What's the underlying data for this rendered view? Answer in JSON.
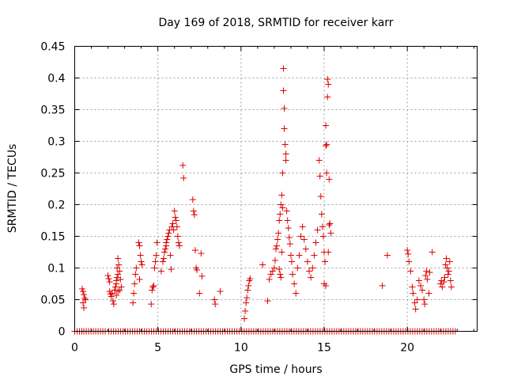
{
  "chart_data": {
    "type": "scatter",
    "title": "Day 169 of 2018, SRMTID for receiver karr",
    "xlabel": "GPS time / hours",
    "ylabel": "SRMTID / TECUs",
    "xlim": [
      0,
      24.2
    ],
    "ylim": [
      0,
      0.45
    ],
    "xticks": [
      0,
      5,
      10,
      15,
      20
    ],
    "xtick_labels": [
      "0",
      "5",
      "10",
      "15",
      "20"
    ],
    "yticks": [
      0,
      0.05,
      0.1,
      0.15,
      0.2,
      0.25,
      0.3,
      0.35,
      0.4,
      0.45
    ],
    "ytick_labels": [
      "0",
      "0.05",
      "0.1",
      "0.15",
      "0.2",
      "0.25",
      "0.3",
      "0.35",
      "0.4",
      "0.45"
    ],
    "grid": true,
    "marker": "+",
    "color": "#dd0000",
    "zero_band": {
      "value": 0,
      "segments": [
        [
          0,
          0.45
        ],
        [
          0.55,
          1.95
        ],
        [
          2.05,
          9.95
        ],
        [
          10.05,
          22.9
        ]
      ]
    },
    "series": [
      {
        "name": "SRMTID",
        "points": [
          [
            0.45,
            0.067
          ],
          [
            0.5,
            0.063
          ],
          [
            0.55,
            0.058
          ],
          [
            0.6,
            0.052
          ],
          [
            0.55,
            0.037
          ],
          [
            0.65,
            0.05
          ],
          [
            0.5,
            0.045
          ],
          [
            2.0,
            0.088
          ],
          [
            2.05,
            0.083
          ],
          [
            2.1,
            0.078
          ],
          [
            2.1,
            0.063
          ],
          [
            2.15,
            0.059
          ],
          [
            2.2,
            0.055
          ],
          [
            2.25,
            0.06
          ],
          [
            2.3,
            0.048
          ],
          [
            2.35,
            0.043
          ],
          [
            2.4,
            0.065
          ],
          [
            2.45,
            0.07
          ],
          [
            2.5,
            0.075
          ],
          [
            2.5,
            0.08
          ],
          [
            2.55,
            0.085
          ],
          [
            2.6,
            0.09
          ],
          [
            2.55,
            0.1
          ],
          [
            2.6,
            0.115
          ],
          [
            2.65,
            0.105
          ],
          [
            2.7,
            0.095
          ],
          [
            2.75,
            0.082
          ],
          [
            2.8,
            0.07
          ],
          [
            2.5,
            0.057
          ],
          [
            2.6,
            0.063
          ],
          [
            2.7,
            0.065
          ],
          [
            3.5,
            0.045
          ],
          [
            3.55,
            0.06
          ],
          [
            3.6,
            0.075
          ],
          [
            3.65,
            0.09
          ],
          [
            3.7,
            0.1
          ],
          [
            3.85,
            0.14
          ],
          [
            3.9,
            0.135
          ],
          [
            3.95,
            0.12
          ],
          [
            4.0,
            0.11
          ],
          [
            4.05,
            0.105
          ],
          [
            3.9,
            0.082
          ],
          [
            4.6,
            0.043
          ],
          [
            4.65,
            0.065
          ],
          [
            4.7,
            0.07
          ],
          [
            4.75,
            0.072
          ],
          [
            4.8,
            0.1
          ],
          [
            4.85,
            0.11
          ],
          [
            4.9,
            0.12
          ],
          [
            4.95,
            0.14
          ],
          [
            5.2,
            0.095
          ],
          [
            5.3,
            0.11
          ],
          [
            5.35,
            0.115
          ],
          [
            5.4,
            0.125
          ],
          [
            5.45,
            0.13
          ],
          [
            5.5,
            0.135
          ],
          [
            5.5,
            0.14
          ],
          [
            5.55,
            0.145
          ],
          [
            5.6,
            0.15
          ],
          [
            5.65,
            0.155
          ],
          [
            5.7,
            0.16
          ],
          [
            5.75,
            0.12
          ],
          [
            5.8,
            0.098
          ],
          [
            5.85,
            0.165
          ],
          [
            5.9,
            0.17
          ],
          [
            5.95,
            0.16
          ],
          [
            6.0,
            0.19
          ],
          [
            6.05,
            0.18
          ],
          [
            6.1,
            0.175
          ],
          [
            6.15,
            0.165
          ],
          [
            6.2,
            0.15
          ],
          [
            6.25,
            0.14
          ],
          [
            6.3,
            0.135
          ],
          [
            6.5,
            0.262
          ],
          [
            6.55,
            0.242
          ],
          [
            7.1,
            0.208
          ],
          [
            7.15,
            0.19
          ],
          [
            7.2,
            0.184
          ],
          [
            7.25,
            0.128
          ],
          [
            7.3,
            0.1
          ],
          [
            7.35,
            0.097
          ],
          [
            7.5,
            0.06
          ],
          [
            7.6,
            0.123
          ],
          [
            7.65,
            0.087
          ],
          [
            8.4,
            0.05
          ],
          [
            8.45,
            0.043
          ],
          [
            8.75,
            0.063
          ],
          [
            10.2,
            0.02
          ],
          [
            10.25,
            0.032
          ],
          [
            10.3,
            0.045
          ],
          [
            10.35,
            0.053
          ],
          [
            10.4,
            0.065
          ],
          [
            10.45,
            0.072
          ],
          [
            10.5,
            0.08
          ],
          [
            10.55,
            0.083
          ],
          [
            11.3,
            0.105
          ],
          [
            11.6,
            0.048
          ],
          [
            11.7,
            0.082
          ],
          [
            11.8,
            0.09
          ],
          [
            11.9,
            0.095
          ],
          [
            12.0,
            0.1
          ],
          [
            12.05,
            0.112
          ],
          [
            12.1,
            0.13
          ],
          [
            12.15,
            0.135
          ],
          [
            12.2,
            0.145
          ],
          [
            12.25,
            0.155
          ],
          [
            12.3,
            0.175
          ],
          [
            12.35,
            0.185
          ],
          [
            12.4,
            0.2
          ],
          [
            12.45,
            0.215
          ],
          [
            12.3,
            0.098
          ],
          [
            12.35,
            0.09
          ],
          [
            12.4,
            0.085
          ],
          [
            12.45,
            0.125
          ],
          [
            12.5,
            0.195
          ],
          [
            12.5,
            0.25
          ],
          [
            12.55,
            0.38
          ],
          [
            12.55,
            0.415
          ],
          [
            12.6,
            0.352
          ],
          [
            12.6,
            0.32
          ],
          [
            12.65,
            0.295
          ],
          [
            12.7,
            0.28
          ],
          [
            12.7,
            0.27
          ],
          [
            12.75,
            0.19
          ],
          [
            12.8,
            0.175
          ],
          [
            12.85,
            0.163
          ],
          [
            12.9,
            0.148
          ],
          [
            12.95,
            0.138
          ],
          [
            13.0,
            0.12
          ],
          [
            13.05,
            0.11
          ],
          [
            13.1,
            0.09
          ],
          [
            13.2,
            0.075
          ],
          [
            13.3,
            0.06
          ],
          [
            13.4,
            0.1
          ],
          [
            13.5,
            0.12
          ],
          [
            13.6,
            0.15
          ],
          [
            13.7,
            0.165
          ],
          [
            13.8,
            0.145
          ],
          [
            13.9,
            0.13
          ],
          [
            14.0,
            0.11
          ],
          [
            14.1,
            0.095
          ],
          [
            14.2,
            0.085
          ],
          [
            14.3,
            0.1
          ],
          [
            14.4,
            0.12
          ],
          [
            14.5,
            0.14
          ],
          [
            14.6,
            0.16
          ],
          [
            14.7,
            0.27
          ],
          [
            14.75,
            0.245
          ],
          [
            14.8,
            0.213
          ],
          [
            14.85,
            0.185
          ],
          [
            14.9,
            0.165
          ],
          [
            14.95,
            0.15
          ],
          [
            15.0,
            0.125
          ],
          [
            15.05,
            0.11
          ],
          [
            15.1,
            0.293
          ],
          [
            15.1,
            0.325
          ],
          [
            15.15,
            0.295
          ],
          [
            15.15,
            0.25
          ],
          [
            15.2,
            0.37
          ],
          [
            15.2,
            0.398
          ],
          [
            15.25,
            0.39
          ],
          [
            15.3,
            0.24
          ],
          [
            15.35,
            0.17
          ],
          [
            15.4,
            0.155
          ],
          [
            15.0,
            0.075
          ],
          [
            15.1,
            0.072
          ],
          [
            15.25,
            0.125
          ],
          [
            15.3,
            0.168
          ],
          [
            18.5,
            0.072
          ],
          [
            18.8,
            0.12
          ],
          [
            20.0,
            0.128
          ],
          [
            20.05,
            0.122
          ],
          [
            20.1,
            0.11
          ],
          [
            20.2,
            0.095
          ],
          [
            20.3,
            0.07
          ],
          [
            20.35,
            0.06
          ],
          [
            20.45,
            0.045
          ],
          [
            20.5,
            0.035
          ],
          [
            20.6,
            0.05
          ],
          [
            20.7,
            0.08
          ],
          [
            20.8,
            0.072
          ],
          [
            20.9,
            0.065
          ],
          [
            21.0,
            0.05
          ],
          [
            21.05,
            0.043
          ],
          [
            21.1,
            0.088
          ],
          [
            21.15,
            0.095
          ],
          [
            21.2,
            0.082
          ],
          [
            21.3,
            0.06
          ],
          [
            21.35,
            0.093
          ],
          [
            21.5,
            0.125
          ],
          [
            22.0,
            0.075
          ],
          [
            22.05,
            0.08
          ],
          [
            22.1,
            0.07
          ],
          [
            22.2,
            0.078
          ],
          [
            22.25,
            0.085
          ],
          [
            22.3,
            0.105
          ],
          [
            22.35,
            0.115
          ],
          [
            22.4,
            0.1
          ],
          [
            22.45,
            0.09
          ],
          [
            22.5,
            0.095
          ],
          [
            22.55,
            0.11
          ],
          [
            22.6,
            0.08
          ],
          [
            22.65,
            0.07
          ]
        ]
      }
    ]
  }
}
